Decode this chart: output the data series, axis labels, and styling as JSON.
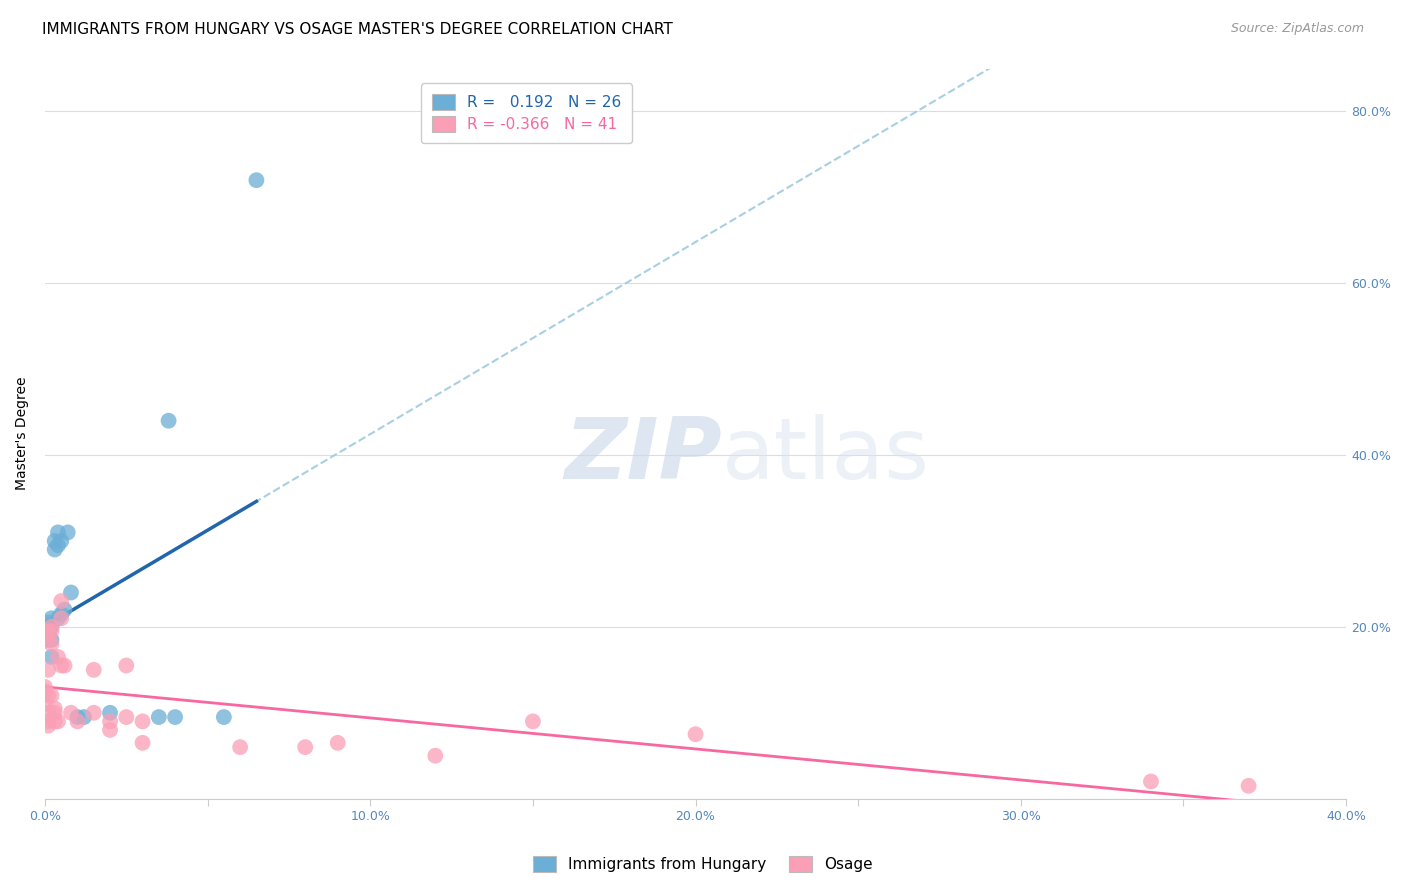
{
  "title": "IMMIGRANTS FROM HUNGARY VS OSAGE MASTER'S DEGREE CORRELATION CHART",
  "source": "Source: ZipAtlas.com",
  "ylabel": "Master's Degree",
  "xlim": [
    0.0,
    0.4
  ],
  "ylim": [
    0.0,
    0.85
  ],
  "xticks": [
    0.0,
    0.05,
    0.1,
    0.15,
    0.2,
    0.25,
    0.3,
    0.35,
    0.4
  ],
  "xticklabels": [
    "0.0%",
    "",
    "10.0%",
    "",
    "20.0%",
    "",
    "30.0%",
    "",
    "40.0%"
  ],
  "yticks_right": [
    0.2,
    0.4,
    0.6,
    0.8
  ],
  "yticklabels_right": [
    "20.0%",
    "40.0%",
    "60.0%",
    "80.0%"
  ],
  "blue_R": 0.192,
  "blue_N": 26,
  "pink_R": -0.366,
  "pink_N": 41,
  "blue_color": "#6baed6",
  "pink_color": "#fa9fb5",
  "blue_line_color": "#2166ac",
  "pink_line_color": "#f768a1",
  "dashed_line_color": "#9ecae1",
  "watermark_zip": "ZIP",
  "watermark_atlas": "atlas",
  "blue_x": [
    0.001,
    0.001,
    0.001,
    0.001,
    0.002,
    0.002,
    0.002,
    0.002,
    0.003,
    0.003,
    0.004,
    0.004,
    0.004,
    0.005,
    0.005,
    0.006,
    0.007,
    0.008,
    0.01,
    0.012,
    0.02,
    0.035,
    0.038,
    0.04,
    0.055,
    0.065
  ],
  "blue_y": [
    0.2,
    0.205,
    0.195,
    0.185,
    0.21,
    0.2,
    0.185,
    0.165,
    0.3,
    0.29,
    0.31,
    0.295,
    0.21,
    0.3,
    0.215,
    0.22,
    0.31,
    0.24,
    0.095,
    0.095,
    0.1,
    0.095,
    0.44,
    0.095,
    0.095,
    0.72
  ],
  "pink_x": [
    0.0,
    0.0,
    0.0,
    0.001,
    0.001,
    0.001,
    0.001,
    0.001,
    0.001,
    0.001,
    0.002,
    0.002,
    0.002,
    0.002,
    0.003,
    0.003,
    0.003,
    0.004,
    0.004,
    0.005,
    0.005,
    0.005,
    0.006,
    0.008,
    0.01,
    0.015,
    0.015,
    0.02,
    0.02,
    0.025,
    0.025,
    0.03,
    0.03,
    0.06,
    0.08,
    0.09,
    0.12,
    0.15,
    0.2,
    0.34,
    0.37
  ],
  "pink_y": [
    0.13,
    0.125,
    0.11,
    0.195,
    0.185,
    0.15,
    0.12,
    0.1,
    0.09,
    0.085,
    0.2,
    0.195,
    0.18,
    0.12,
    0.105,
    0.1,
    0.09,
    0.165,
    0.09,
    0.23,
    0.21,
    0.155,
    0.155,
    0.1,
    0.09,
    0.15,
    0.1,
    0.09,
    0.08,
    0.155,
    0.095,
    0.09,
    0.065,
    0.06,
    0.06,
    0.065,
    0.05,
    0.09,
    0.075,
    0.02,
    0.015
  ],
  "legend_label_blue": "Immigrants from Hungary",
  "legend_label_pink": "Osage",
  "title_fontsize": 11,
  "source_fontsize": 9,
  "axis_label_fontsize": 10,
  "tick_fontsize": 9,
  "legend_fontsize": 11
}
